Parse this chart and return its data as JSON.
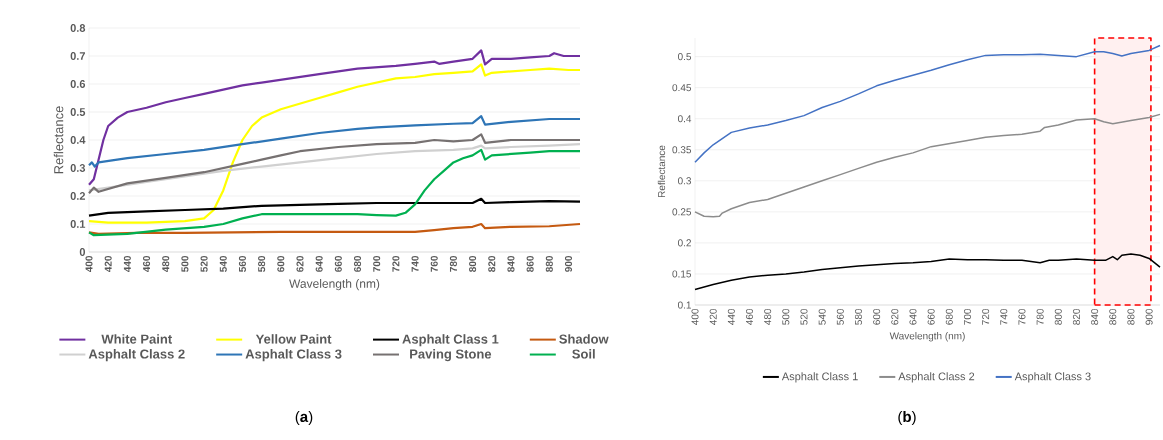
{
  "chart_data": [
    {
      "type": "line",
      "xlabel": "Wavelength (nm)",
      "ylabel": "Reflectance",
      "xlim": [
        400,
        912
      ],
      "ylim": [
        0,
        0.8
      ],
      "xticks": [
        400,
        420,
        440,
        460,
        480,
        500,
        520,
        540,
        560,
        580,
        600,
        620,
        640,
        660,
        680,
        700,
        720,
        740,
        760,
        780,
        800,
        820,
        840,
        860,
        880,
        900
      ],
      "yticks": [
        0,
        0.1,
        0.2,
        0.3,
        0.4,
        0.5,
        0.6,
        0.7,
        0.8
      ],
      "grid": "y",
      "legend": "bottom",
      "annotations": [
        "(**a**)"
      ],
      "series": [
        {
          "name": "White Paint",
          "color": "#7030a0",
          "x": [
            400,
            405,
            410,
            415,
            420,
            430,
            440,
            460,
            480,
            500,
            520,
            540,
            560,
            580,
            600,
            620,
            640,
            660,
            680,
            700,
            720,
            740,
            760,
            765,
            780,
            800,
            809,
            813,
            820,
            840,
            860,
            880,
            885,
            895,
            900,
            905,
            912
          ],
          "values": [
            0.24,
            0.26,
            0.33,
            0.4,
            0.45,
            0.48,
            0.5,
            0.515,
            0.535,
            0.55,
            0.565,
            0.58,
            0.595,
            0.605,
            0.615,
            0.625,
            0.635,
            0.645,
            0.655,
            0.66,
            0.665,
            0.672,
            0.68,
            0.672,
            0.68,
            0.69,
            0.72,
            0.67,
            0.69,
            0.69,
            0.695,
            0.7,
            0.71,
            0.7,
            0.7,
            0.7,
            0.7
          ]
        },
        {
          "name": "Yellow Paint",
          "color": "#ffff00",
          "x": [
            400,
            420,
            460,
            500,
            520,
            530,
            540,
            550,
            560,
            570,
            580,
            600,
            620,
            640,
            660,
            680,
            700,
            720,
            740,
            760,
            780,
            800,
            809,
            813,
            820,
            840,
            860,
            880,
            900,
            912
          ],
          "values": [
            0.11,
            0.105,
            0.105,
            0.11,
            0.12,
            0.15,
            0.22,
            0.32,
            0.4,
            0.45,
            0.48,
            0.51,
            0.53,
            0.55,
            0.57,
            0.59,
            0.605,
            0.62,
            0.625,
            0.635,
            0.64,
            0.645,
            0.67,
            0.63,
            0.64,
            0.645,
            0.65,
            0.655,
            0.65,
            0.65
          ]
        },
        {
          "name": "Asphalt Class 1",
          "color": "#000000",
          "x": [
            400,
            420,
            460,
            500,
            540,
            580,
            620,
            660,
            700,
            740,
            780,
            800,
            809,
            813,
            840,
            880,
            912
          ],
          "values": [
            0.13,
            0.14,
            0.145,
            0.15,
            0.155,
            0.165,
            0.168,
            0.172,
            0.175,
            0.175,
            0.175,
            0.175,
            0.19,
            0.175,
            0.178,
            0.182,
            0.18
          ]
        },
        {
          "name": "Shadow",
          "color": "#c55a11",
          "x": [
            400,
            410,
            450,
            500,
            600,
            700,
            740,
            760,
            780,
            800,
            809,
            813,
            840,
            880,
            912
          ],
          "values": [
            0.07,
            0.065,
            0.068,
            0.068,
            0.072,
            0.072,
            0.072,
            0.078,
            0.085,
            0.09,
            0.1,
            0.085,
            0.09,
            0.092,
            0.1
          ]
        },
        {
          "name": "Asphalt Class 2",
          "color": "#d0d0d0",
          "x": [
            400,
            420,
            460,
            500,
            540,
            580,
            620,
            660,
            700,
            740,
            780,
            800,
            809,
            813,
            840,
            880,
            912
          ],
          "values": [
            0.22,
            0.23,
            0.25,
            0.27,
            0.29,
            0.305,
            0.32,
            0.335,
            0.35,
            0.36,
            0.365,
            0.37,
            0.38,
            0.37,
            0.375,
            0.38,
            0.385
          ]
        },
        {
          "name": "Asphalt Class 3",
          "color": "#2e75b6",
          "x": [
            400,
            403,
            406,
            410,
            440,
            480,
            520,
            560,
            600,
            640,
            680,
            700,
            740,
            780,
            800,
            809,
            813,
            840,
            880,
            912
          ],
          "values": [
            0.31,
            0.32,
            0.305,
            0.32,
            0.335,
            0.35,
            0.365,
            0.385,
            0.405,
            0.425,
            0.44,
            0.445,
            0.452,
            0.458,
            0.46,
            0.485,
            0.455,
            0.465,
            0.475,
            0.475
          ]
        },
        {
          "name": "Paving Stone",
          "color": "#767171",
          "x": [
            400,
            405,
            410,
            440,
            480,
            520,
            540,
            560,
            580,
            600,
            620,
            660,
            700,
            740,
            760,
            780,
            800,
            809,
            813,
            840,
            880,
            912
          ],
          "values": [
            0.21,
            0.23,
            0.215,
            0.245,
            0.265,
            0.285,
            0.3,
            0.315,
            0.33,
            0.345,
            0.36,
            0.375,
            0.385,
            0.39,
            0.4,
            0.395,
            0.4,
            0.42,
            0.39,
            0.4,
            0.4,
            0.4
          ]
        },
        {
          "name": "Soil",
          "color": "#00b050",
          "x": [
            400,
            405,
            440,
            480,
            520,
            540,
            560,
            580,
            600,
            640,
            680,
            700,
            720,
            730,
            740,
            750,
            760,
            770,
            780,
            790,
            800,
            809,
            813,
            820,
            840,
            860,
            880,
            900,
            912
          ],
          "values": [
            0.07,
            0.06,
            0.065,
            0.08,
            0.09,
            0.1,
            0.12,
            0.135,
            0.135,
            0.135,
            0.135,
            0.132,
            0.13,
            0.14,
            0.17,
            0.22,
            0.26,
            0.29,
            0.32,
            0.335,
            0.345,
            0.365,
            0.33,
            0.345,
            0.35,
            0.355,
            0.36,
            0.36,
            0.36
          ]
        }
      ]
    },
    {
      "type": "line",
      "xlabel": "Wavelength (nm)",
      "ylabel": "Reflectance",
      "xlim": [
        400,
        912
      ],
      "ylim": [
        0.1,
        0.53
      ],
      "xticks": [
        400,
        420,
        440,
        460,
        480,
        500,
        520,
        540,
        560,
        580,
        600,
        620,
        640,
        660,
        680,
        700,
        720,
        740,
        760,
        780,
        800,
        820,
        840,
        860,
        880,
        900
      ],
      "yticks": [
        0.1,
        0.15,
        0.2,
        0.25,
        0.3,
        0.35,
        0.4,
        0.45,
        0.5
      ],
      "grid": "y",
      "legend": "bottom",
      "annotations": [
        "(**b**)"
      ],
      "bands": [
        {
          "axis": "x",
          "from": 840,
          "to": 902,
          "color": "#ff0000"
        }
      ],
      "series": [
        {
          "name": "Asphalt Class 1",
          "color": "#000000",
          "x": [
            400,
            420,
            440,
            460,
            480,
            500,
            520,
            540,
            560,
            580,
            600,
            620,
            640,
            660,
            680,
            700,
            720,
            740,
            760,
            780,
            790,
            800,
            820,
            840,
            852,
            860,
            865,
            870,
            880,
            890,
            900,
            912
          ],
          "values": [
            0.125,
            0.133,
            0.14,
            0.145,
            0.148,
            0.15,
            0.153,
            0.157,
            0.16,
            0.163,
            0.165,
            0.167,
            0.168,
            0.17,
            0.174,
            0.173,
            0.173,
            0.172,
            0.172,
            0.168,
            0.172,
            0.172,
            0.174,
            0.172,
            0.172,
            0.178,
            0.173,
            0.18,
            0.182,
            0.18,
            0.175,
            0.161
          ]
        },
        {
          "name": "Asphalt Class 2",
          "color": "#8c8c8c",
          "x": [
            400,
            410,
            420,
            427,
            430,
            440,
            460,
            480,
            500,
            520,
            540,
            560,
            580,
            600,
            620,
            640,
            660,
            680,
            700,
            720,
            740,
            760,
            780,
            785,
            800,
            820,
            840,
            850,
            860,
            880,
            900,
            912
          ],
          "values": [
            0.25,
            0.243,
            0.242,
            0.243,
            0.248,
            0.255,
            0.265,
            0.27,
            0.28,
            0.29,
            0.3,
            0.31,
            0.32,
            0.33,
            0.338,
            0.345,
            0.355,
            0.36,
            0.365,
            0.37,
            0.373,
            0.375,
            0.38,
            0.386,
            0.39,
            0.398,
            0.4,
            0.395,
            0.392,
            0.397,
            0.402,
            0.407
          ]
        },
        {
          "name": "Asphalt Class 3",
          "color": "#4472c4",
          "x": [
            400,
            410,
            420,
            430,
            440,
            460,
            480,
            500,
            520,
            540,
            560,
            580,
            600,
            620,
            640,
            660,
            680,
            700,
            720,
            740,
            760,
            780,
            800,
            820,
            840,
            850,
            860,
            870,
            880,
            900,
            912
          ],
          "values": [
            0.33,
            0.345,
            0.358,
            0.368,
            0.378,
            0.385,
            0.39,
            0.397,
            0.405,
            0.418,
            0.428,
            0.44,
            0.453,
            0.462,
            0.47,
            0.478,
            0.487,
            0.495,
            0.502,
            0.503,
            0.503,
            0.504,
            0.502,
            0.5,
            0.508,
            0.508,
            0.505,
            0.501,
            0.505,
            0.51,
            0.518
          ]
        }
      ]
    }
  ]
}
